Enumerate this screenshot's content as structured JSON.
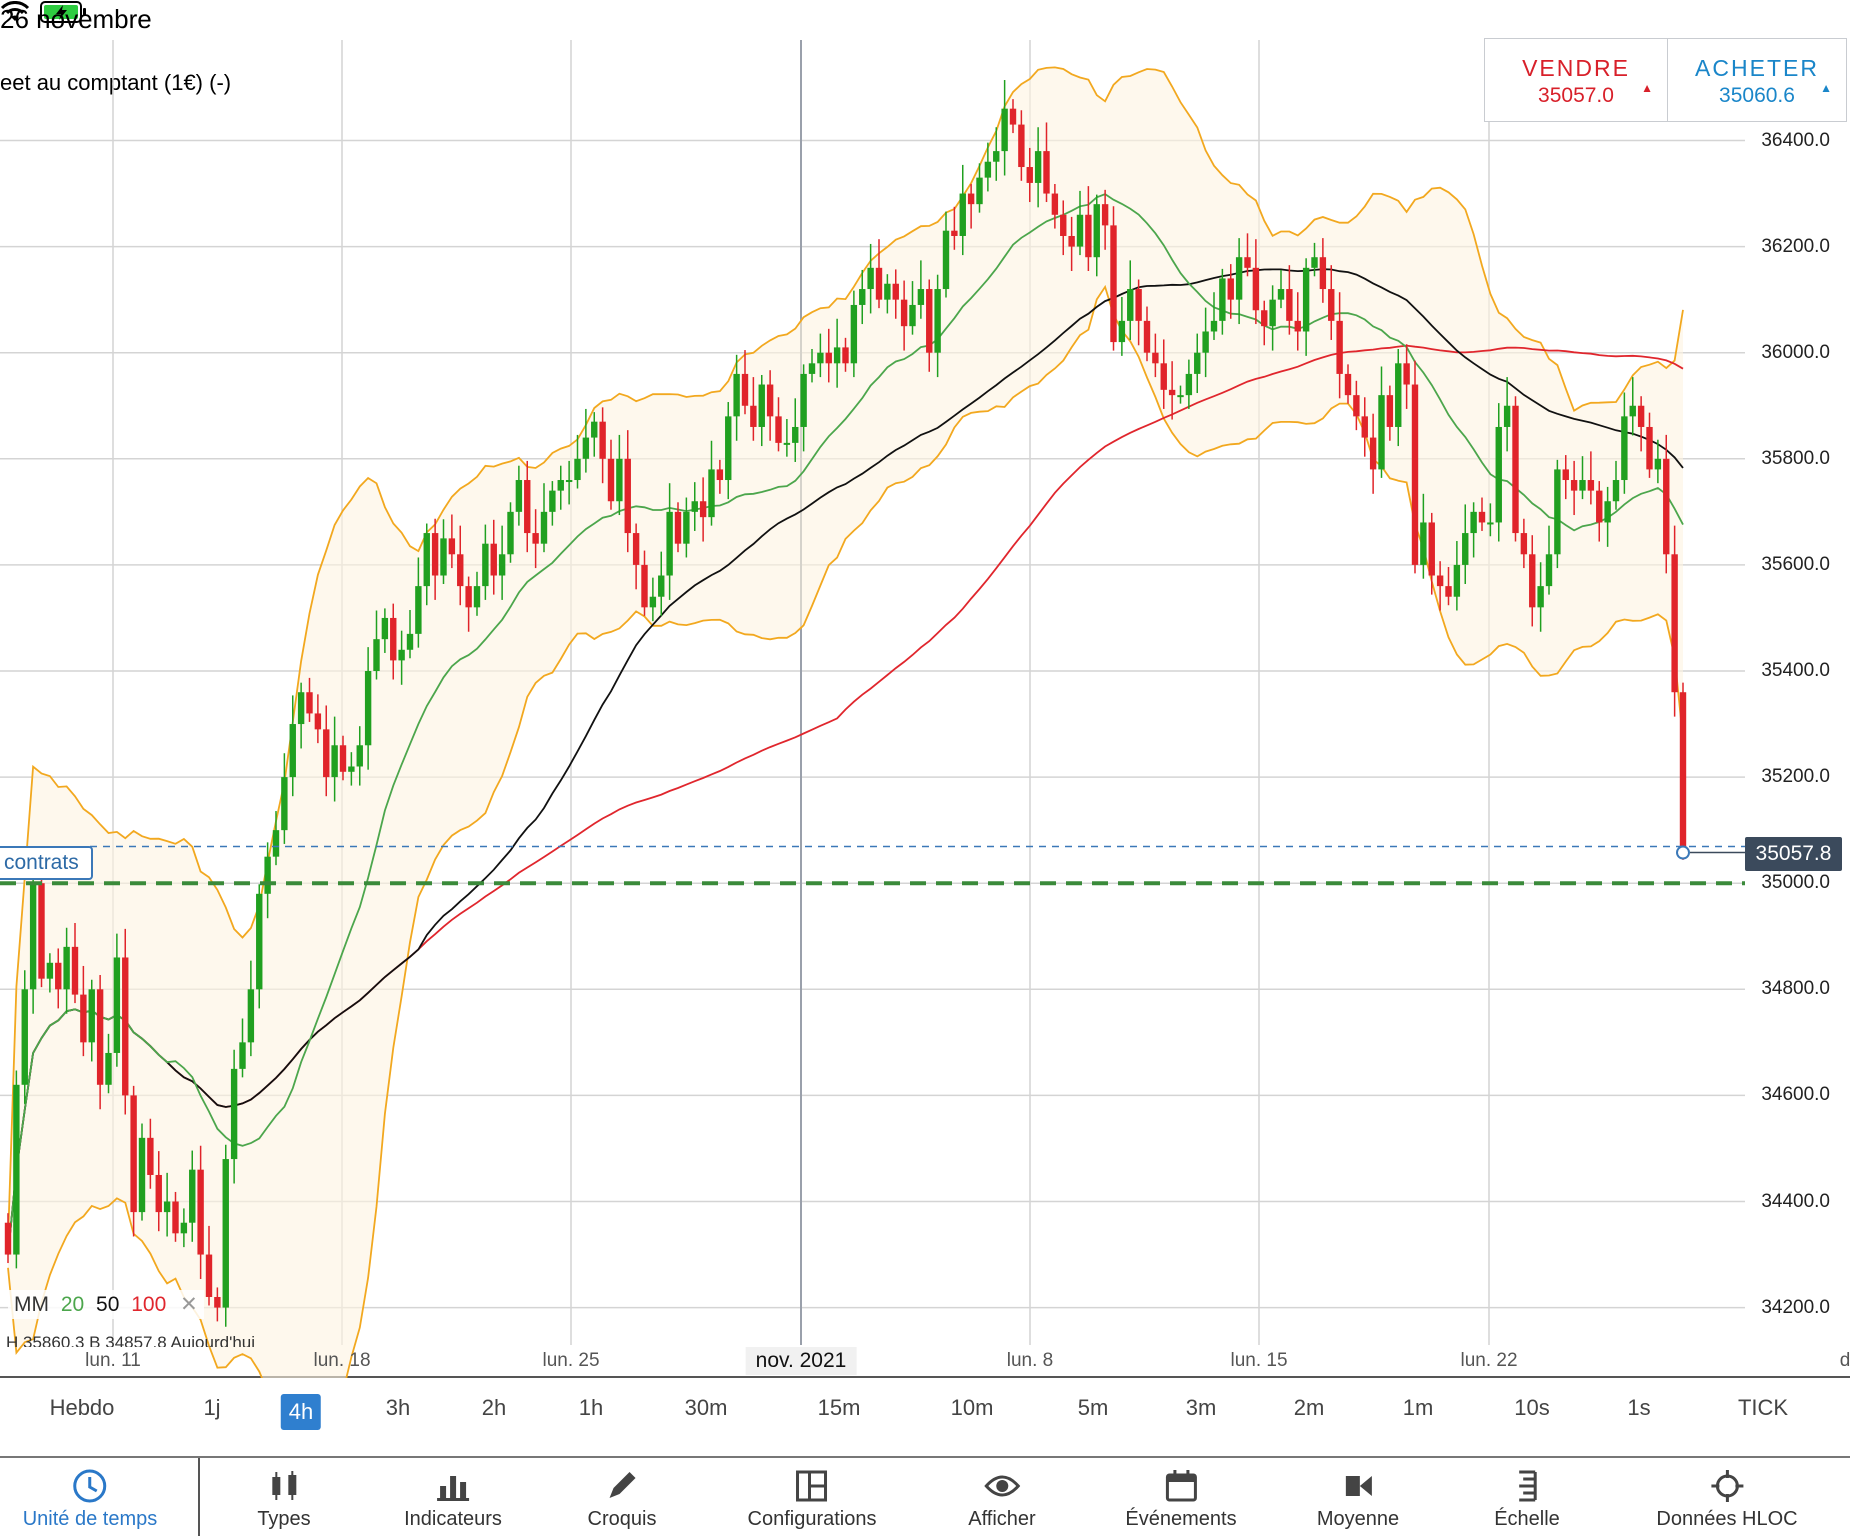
{
  "status": {
    "date": "26 novembre"
  },
  "instrument": {
    "title": "eet au comptant (1€) (-)"
  },
  "trade": {
    "sell": {
      "label": "VENDRE",
      "price": "35057.0",
      "arrow": "▲"
    },
    "buy": {
      "label": "ACHETER",
      "price": "35060.6",
      "arrow": "▲"
    }
  },
  "price_tag": "35057.8",
  "position_tag": "contrats",
  "legend": {
    "prefix": "MM",
    "ma20": "20",
    "ma50": "50",
    "ma100": "100",
    "close": "✕"
  },
  "hloc": "H 35860.3   B 34857.8   Aujourd'hui",
  "colors": {
    "up": "#20a020",
    "down": "#e0242a",
    "ma20": "#4ca64c",
    "ma50": "#111111",
    "ma100": "#e0262d",
    "bollinger": "#f2a81f",
    "sell": "#d8202a",
    "buy": "#1a86c9"
  },
  "chart_data": {
    "type": "candlestick",
    "timeframe": "4h",
    "y_ticks": [
      "36400.0",
      "36200.0",
      "36000.0",
      "35800.0",
      "35600.0",
      "35400.0",
      "35200.0",
      "35000.0",
      "34800.0",
      "34600.0",
      "34400.0",
      "34200.0"
    ],
    "x_ticks": [
      "lun. 11",
      "lun. 18",
      "lun. 25",
      "nov. 2021",
      "lun. 8",
      "lun. 15",
      "lun. 22",
      "d"
    ],
    "ylim": [
      34150,
      36580
    ],
    "last_price": 35057.8,
    "target_line": 35000,
    "close": [
      34300,
      34620,
      34800,
      35000,
      34820,
      34850,
      34800,
      34880,
      34790,
      34700,
      34800,
      34620,
      34680,
      34860,
      34600,
      34380,
      34520,
      34450,
      34380,
      34400,
      34340,
      34360,
      34460,
      34300,
      34220,
      34200,
      34480,
      34650,
      34700,
      34800,
      34980,
      35050,
      35100,
      35200,
      35300,
      35360,
      35320,
      35290,
      35200,
      35260,
      35210,
      35220,
      35260,
      35400,
      35460,
      35500,
      35420,
      35440,
      35470,
      35560,
      35660,
      35580,
      35650,
      35620,
      35560,
      35520,
      35560,
      35640,
      35580,
      35620,
      35700,
      35760,
      35660,
      35640,
      35700,
      35740,
      35760,
      35760,
      35800,
      35840,
      35870,
      35800,
      35720,
      35800,
      35660,
      35600,
      35520,
      35540,
      35580,
      35700,
      35640,
      35700,
      35720,
      35690,
      35780,
      35760,
      35880,
      35960,
      35900,
      35860,
      35940,
      35880,
      35830,
      35830,
      35860,
      35960,
      35980,
      36000,
      35980,
      36010,
      35980,
      36090,
      36120,
      36160,
      36100,
      36130,
      36100,
      36050,
      36090,
      36120,
      36000,
      36120,
      36230,
      36220,
      36300,
      36280,
      36330,
      36360,
      36380,
      36460,
      36430,
      36350,
      36320,
      36380,
      36300,
      36260,
      36220,
      36200,
      36260,
      36180,
      36280,
      36240,
      36020,
      36060,
      36120,
      36060,
      36000,
      35980,
      35930,
      35920,
      35920,
      35960,
      36000,
      36040,
      36060,
      36140,
      36100,
      36180,
      36160,
      36080,
      36050,
      36100,
      36120,
      36060,
      36040,
      36160,
      36180,
      36120,
      36060,
      35960,
      35920,
      35880,
      35840,
      35780,
      35920,
      35860,
      35980,
      35940,
      35600,
      35680,
      35580,
      35560,
      35540,
      35600,
      35660,
      35700,
      35680,
      35680,
      35860,
      35900,
      35660,
      35620,
      35520,
      35560,
      35620,
      35780,
      35760,
      35740,
      35760,
      35740,
      35680,
      35720,
      35760,
      35880,
      35900,
      35860,
      35780,
      35800,
      35620,
      35360,
      35060
    ]
  },
  "timeframes": {
    "items": [
      "Hebdo",
      "1j",
      "4h",
      "3h",
      "2h",
      "1h",
      "30m",
      "15m",
      "10m",
      "5m",
      "3m",
      "2m",
      "1m",
      "10s",
      "1s",
      "TICK"
    ],
    "selected": "4h"
  },
  "nav": {
    "items": [
      {
        "label": "Unité de temps",
        "icon": "clock-icon",
        "active": true
      },
      {
        "label": "Types",
        "icon": "candles-icon"
      },
      {
        "label": "Indicateurs",
        "icon": "bar-chart-icon"
      },
      {
        "label": "Croquis",
        "icon": "pencil-icon"
      },
      {
        "label": "Configurations",
        "icon": "layout-icon"
      },
      {
        "label": "Afficher",
        "icon": "eye-icon"
      },
      {
        "label": "Événements",
        "icon": "calendar-icon"
      },
      {
        "label": "Moyenne",
        "icon": "average-icon"
      },
      {
        "label": "Échelle",
        "icon": "scale-icon"
      },
      {
        "label": "Données HLOC",
        "icon": "crosshair-icon"
      }
    ]
  }
}
